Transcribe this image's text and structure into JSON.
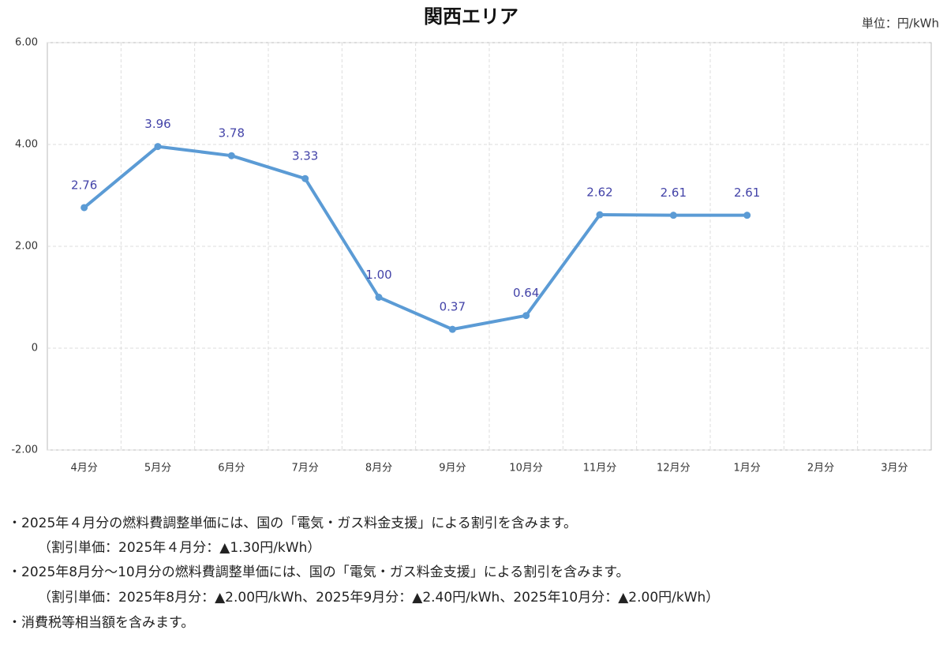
{
  "chart_data": {
    "type": "line",
    "title": "関西エリア",
    "unit_label": "単位：円/kWh",
    "categories": [
      "4月分",
      "5月分",
      "6月分",
      "7月分",
      "8月分",
      "9月分",
      "10月分",
      "11月分",
      "12月分",
      "1月分",
      "2月分",
      "3月分"
    ],
    "series": [
      {
        "color": "#5b9bd5",
        "values": [
          2.76,
          3.96,
          3.78,
          3.33,
          1,
          0.37,
          0.64,
          2.62,
          2.61,
          2.61,
          null,
          null
        ],
        "value_labels": [
          "2.76",
          "3.96",
          "3.78",
          "3.33",
          "1.00",
          "0.37",
          "0.64",
          "2.62",
          "2.61",
          "2.61",
          null,
          null
        ]
      }
    ],
    "ylim": [
      -2,
      6
    ],
    "yticks": [
      {
        "value": -2,
        "label": "-2.00"
      },
      0,
      {
        "value": 2,
        "label": "2.00"
      },
      {
        "value": 4,
        "label": "4.00"
      },
      {
        "value": 6,
        "label": "6.00"
      }
    ],
    "grid": true
  },
  "notes": [
    "・2025年４月分の燃料費調整単価には、国の「電気・ガス料金支援」による割引を含みます。",
    "（割引単価：2025年４月分：▲1.30円/kWh）",
    "・2025年8月分～10月分の燃料費調整単価には、国の「電気・ガス料金支援」による割引を含みます。",
    "（割引単価：2025年8月分：▲2.00円/kWh、2025年9月分：▲2.40円/kWh、2025年10月分：▲2.00円/kWh）",
    "・消費税等相当額を含みます。"
  ]
}
